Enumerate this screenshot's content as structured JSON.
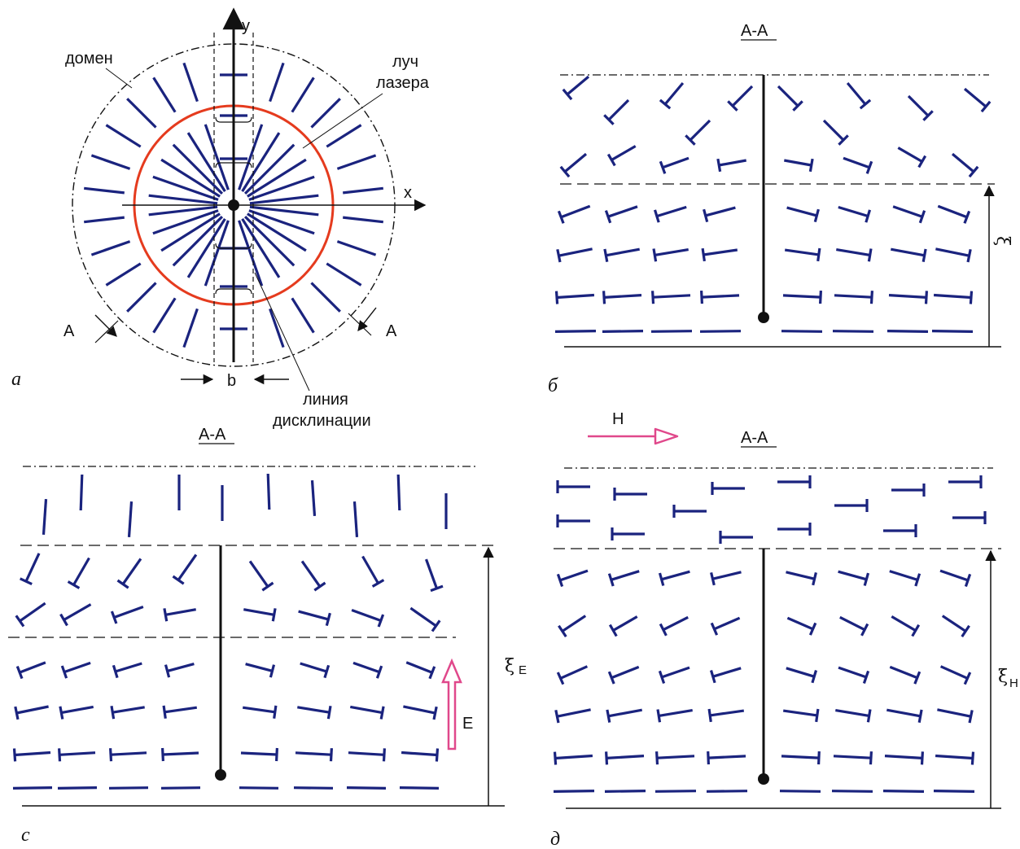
{
  "colors": {
    "director": "#1a237e",
    "laser_circle": "#e53b1e",
    "field_arrow": "#e0488b",
    "ink": "#111111"
  },
  "panel_a": {
    "caption": "a",
    "y_axis": "y",
    "x_axis": "x",
    "domain_label": "домен",
    "laser_label_1": "луч",
    "laser_label_2": "лазера",
    "disclination_label_1": "линия",
    "disclination_label_2": "дисклинации",
    "width_label": "b",
    "section_left": "A",
    "section_right": "A"
  },
  "panel_b": {
    "caption": "б",
    "section": "A-A",
    "height_label": "ξ"
  },
  "panel_c": {
    "caption": "c",
    "section": "A-A",
    "height_label": "ξ",
    "height_sub": "E",
    "field_label": "E"
  },
  "panel_d": {
    "caption": "д",
    "section": "A-A",
    "height_label": "ξ",
    "height_sub": "H",
    "field_label": "H"
  }
}
